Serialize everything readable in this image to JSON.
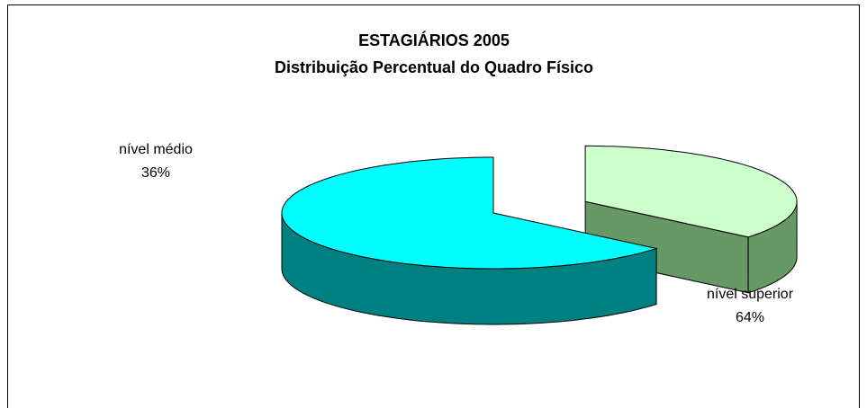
{
  "chart_data": {
    "type": "pie3d",
    "title": "ESTAGIÁRIOS 2005",
    "subtitle": "Distribuição Percentual do Quadro Físico",
    "categories": [
      "nível médio",
      "nível superior"
    ],
    "values": [
      36,
      64
    ],
    "value_labels": [
      "36%",
      "64%"
    ],
    "colors": [
      "#ccffcc",
      "#00ffff"
    ],
    "side_colors": [
      "#669966",
      "#008080"
    ]
  }
}
